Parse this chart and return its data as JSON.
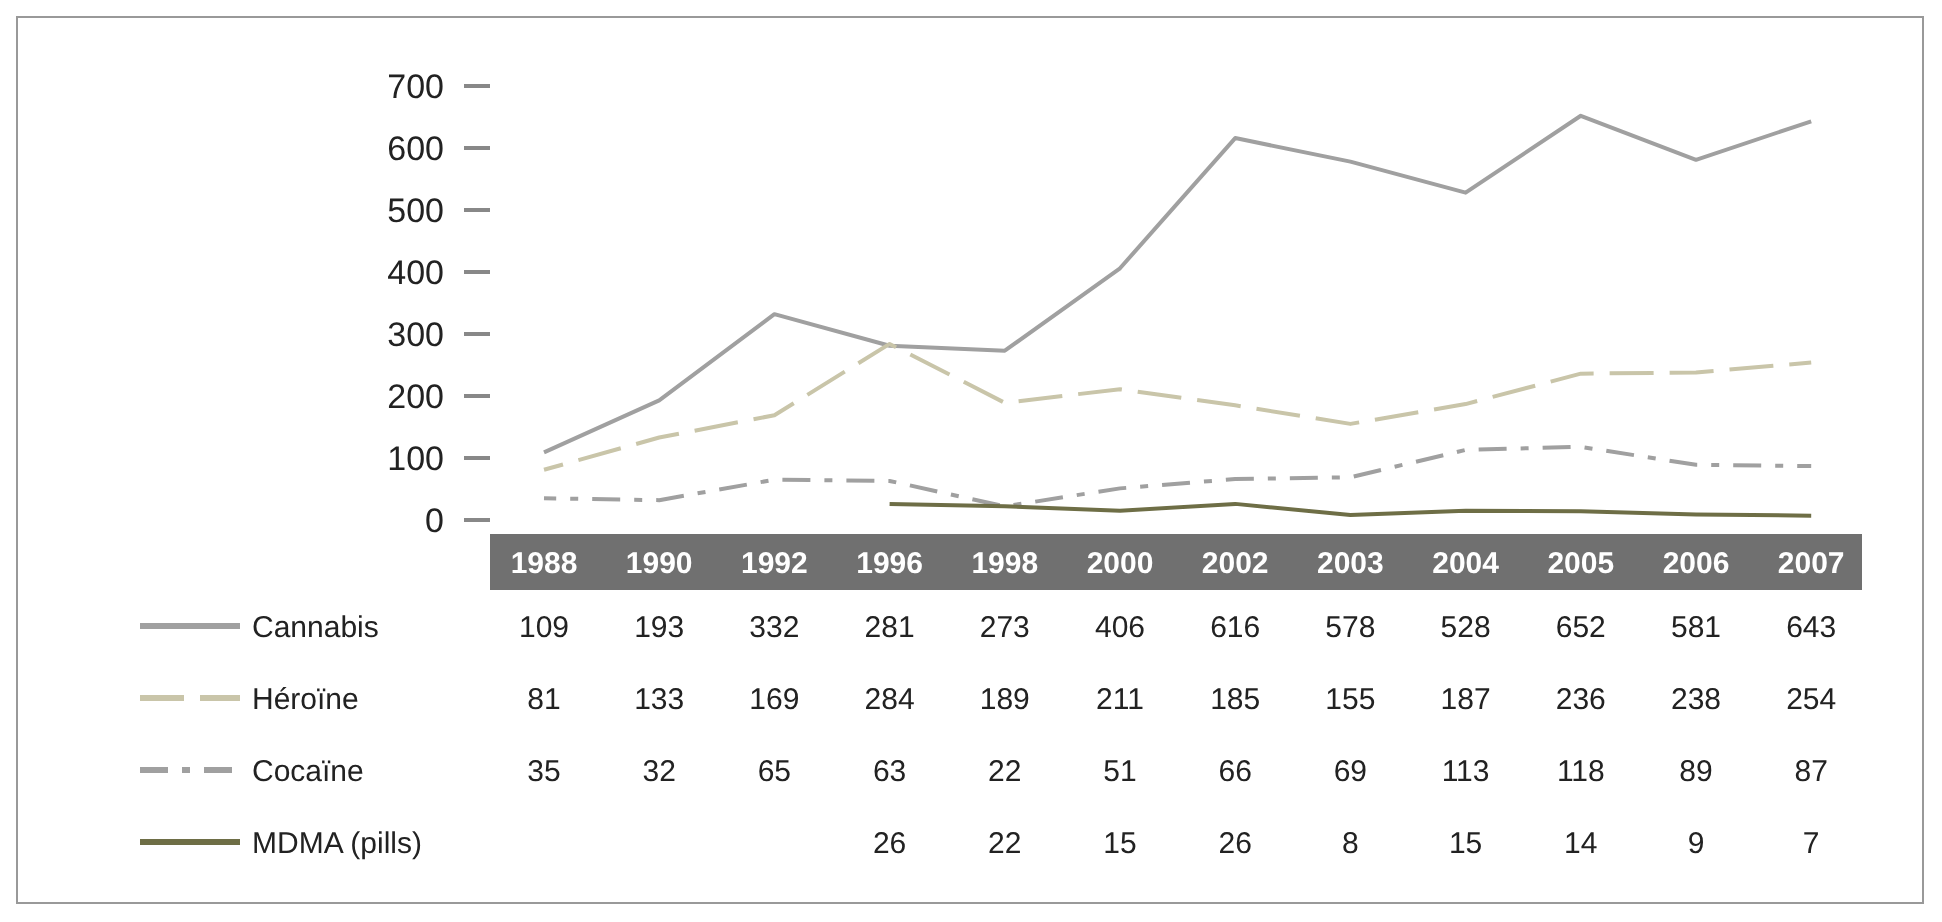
{
  "chart_data": {
    "type": "line",
    "categories": [
      "1988",
      "1990",
      "1992",
      "1996",
      "1998",
      "2000",
      "2002",
      "2003",
      "2004",
      "2005",
      "2006",
      "2007"
    ],
    "series": [
      {
        "name": "Cannabis",
        "color": "#a0a0a0",
        "line_style": "solid",
        "values": [
          109,
          193,
          332,
          281,
          273,
          406,
          616,
          578,
          528,
          652,
          581,
          643
        ]
      },
      {
        "name": "Héroïne",
        "color": "#c9c5a9",
        "line_style": "dashed",
        "values": [
          81,
          133,
          169,
          284,
          189,
          211,
          185,
          155,
          187,
          236,
          238,
          254
        ]
      },
      {
        "name": "Cocaïne",
        "color": "#a0a0a0",
        "line_style": "dashdot",
        "values": [
          35,
          32,
          65,
          63,
          22,
          51,
          66,
          69,
          113,
          118,
          89,
          87
        ]
      },
      {
        "name": "MDMA (pills)",
        "color": "#6e6e46",
        "line_style": "solid",
        "values": [
          null,
          null,
          null,
          26,
          22,
          15,
          26,
          8,
          15,
          14,
          9,
          7
        ]
      }
    ],
    "ylim": [
      0,
      700
    ],
    "yticks": [
      0,
      100,
      200,
      300,
      400,
      500,
      600,
      700
    ],
    "grid": false,
    "data_labels": true,
    "legend": "bottom left"
  }
}
